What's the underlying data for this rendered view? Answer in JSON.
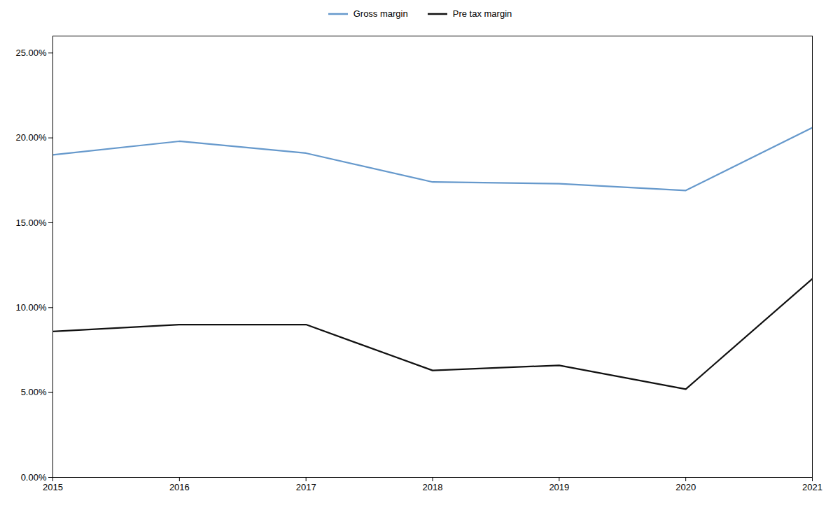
{
  "chart_data": {
    "type": "line",
    "x": [
      2015,
      2016,
      2017,
      2018,
      2019,
      2020,
      2021
    ],
    "xlim": [
      2015,
      2021
    ],
    "xticks": [
      2015,
      2016,
      2017,
      2018,
      2019,
      2020,
      2021
    ],
    "series": [
      {
        "name": "Gross margin",
        "color": "#6699CC",
        "values": [
          0.19,
          0.198,
          0.191,
          0.174,
          0.173,
          0.169,
          0.206
        ]
      },
      {
        "name": "Pre tax margin",
        "color": "#111111",
        "values": [
          0.086,
          0.09,
          0.09,
          0.063,
          0.066,
          0.052,
          0.117
        ]
      }
    ],
    "ylim": [
      0.0,
      0.26
    ],
    "yticks": [
      {
        "value": 0.0,
        "label": "0.00%"
      },
      {
        "value": 0.05,
        "label": "5.00%"
      },
      {
        "value": 0.1,
        "label": "10.00%"
      },
      {
        "value": 0.15,
        "label": "15.00%"
      },
      {
        "value": 0.2,
        "label": "20.00%"
      },
      {
        "value": 0.25,
        "label": "25.00%"
      }
    ],
    "legend": "top",
    "grid": false
  }
}
